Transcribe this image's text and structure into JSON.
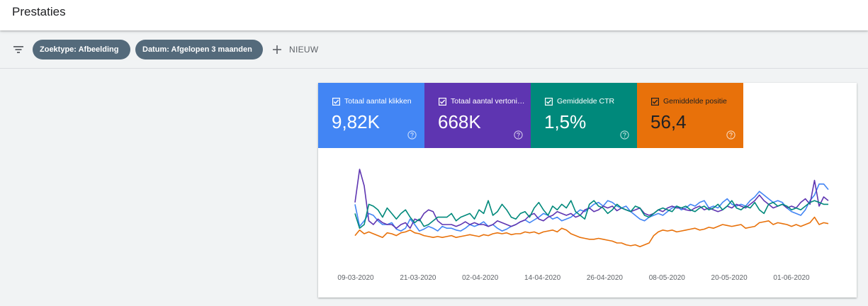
{
  "header": {
    "title": "Prestaties"
  },
  "filters": {
    "chips": [
      {
        "label": "Zoektype: Afbeelding"
      },
      {
        "label": "Datum: Afgelopen 3 maanden"
      }
    ],
    "new_label": "NIEUW"
  },
  "metrics": [
    {
      "label": "Totaal aantal klikken",
      "value": "9,82K",
      "color": "#4285f4"
    },
    {
      "label": "Totaal aantal vertoningen",
      "value": "668K",
      "color": "#5e35b1"
    },
    {
      "label": "Gemiddelde CTR",
      "value": "1,5%",
      "color": "#00897b"
    },
    {
      "label": "Gemiddelde positie",
      "value": "56,4",
      "color": "#e8710a"
    }
  ],
  "chart_data": {
    "type": "line",
    "x_tick_labels": [
      "09-03-2020",
      "21-03-2020",
      "02-04-2020",
      "14-04-2020",
      "26-04-2020",
      "08-05-2020",
      "20-05-2020",
      "01-06-2020"
    ],
    "grid": false,
    "legend": "none",
    "series": [
      {
        "name": "Totaal aantal klikken",
        "color": "#4285f4",
        "values": [
          62,
          38,
          44,
          52,
          50,
          44,
          40,
          40,
          42,
          35,
          33,
          36,
          46,
          40,
          33,
          35,
          38,
          36,
          33,
          38,
          36,
          36,
          34,
          33,
          36,
          40,
          38,
          40,
          43,
          38,
          40,
          36,
          33,
          35,
          38,
          40,
          43,
          45,
          42,
          45,
          48,
          52,
          50,
          46,
          48,
          44,
          46,
          48,
          52,
          56,
          54,
          58,
          62,
          64,
          60,
          66,
          64,
          60,
          58,
          60,
          54,
          50,
          46,
          44,
          48,
          50,
          52,
          50,
          54,
          58,
          60,
          56,
          58,
          62,
          60,
          64,
          66,
          58,
          60,
          58,
          64,
          68,
          62,
          60,
          62,
          60,
          66,
          70,
          76,
          72,
          68,
          64,
          66,
          64,
          58,
          54,
          52,
          50,
          56,
          66,
          72,
          84,
          84,
          78
        ]
      },
      {
        "name": "Totaal aantal vertoningen",
        "color": "#5e35b1",
        "values": [
          64,
          100,
          82,
          44,
          40,
          46,
          42,
          40,
          40,
          36,
          40,
          42,
          36,
          46,
          44,
          52,
          56,
          54,
          44,
          40,
          40,
          40,
          38,
          40,
          43,
          40,
          42,
          40,
          40,
          38,
          40,
          44,
          42,
          40,
          38,
          40,
          43,
          45,
          50,
          52,
          46,
          44,
          48,
          50,
          54,
          52,
          50,
          52,
          48,
          50,
          56,
          58,
          54,
          56,
          60,
          58,
          60,
          55,
          58,
          56,
          54,
          56,
          58,
          52,
          50,
          52,
          56,
          54,
          58,
          60,
          58,
          58,
          56,
          55,
          58,
          60,
          56,
          58,
          56,
          54,
          56,
          60,
          58,
          62,
          60,
          58,
          62,
          66,
          72,
          66,
          62,
          58,
          60,
          62,
          58,
          60,
          58,
          64,
          68,
          62,
          88,
          60,
          70,
          66
        ]
      },
      {
        "name": "Gemiddelde CTR",
        "color": "#00897b",
        "values": [
          52,
          36,
          40,
          62,
          60,
          56,
          48,
          58,
          52,
          46,
          52,
          56,
          48,
          42,
          46,
          38,
          40,
          44,
          48,
          48,
          48,
          52,
          44,
          48,
          50,
          52,
          46,
          56,
          52,
          66,
          50,
          54,
          62,
          56,
          48,
          46,
          52,
          54,
          48,
          58,
          64,
          56,
          50,
          60,
          56,
          62,
          58,
          66,
          54,
          50,
          46,
          62,
          66,
          60,
          58,
          52,
          56,
          62,
          58,
          56,
          54,
          60,
          58,
          50,
          48,
          52,
          56,
          58,
          56,
          54,
          60,
          58,
          60,
          56,
          54,
          58,
          60,
          56,
          58,
          62,
          56,
          60,
          66,
          58,
          56,
          60,
          58,
          64,
          56,
          52,
          62,
          64,
          60,
          62,
          60,
          56,
          58,
          56,
          60,
          64,
          66,
          64,
          62,
          62
        ]
      },
      {
        "name": "Gemiddelde positie",
        "color": "#e8710a",
        "values": [
          28,
          34,
          30,
          32,
          30,
          28,
          26,
          31,
          30,
          28,
          31,
          32,
          34,
          31,
          30,
          28,
          27,
          26,
          27,
          26,
          27,
          28,
          26,
          27,
          28,
          29,
          28,
          27,
          29,
          28,
          30,
          31,
          30,
          31,
          29,
          30,
          30,
          32,
          31,
          32,
          30,
          32,
          33,
          34,
          32,
          36,
          34,
          30,
          28,
          26,
          25,
          24,
          24,
          25,
          24,
          23,
          22,
          20,
          20,
          18,
          17,
          18,
          16,
          18,
          20,
          28,
          32,
          34,
          33,
          34,
          32,
          33,
          34,
          35,
          36,
          34,
          35,
          37,
          36,
          38,
          40,
          39,
          38,
          39,
          40,
          36,
          37,
          38,
          42,
          43,
          44,
          40,
          42,
          41,
          40,
          38,
          40,
          38,
          40,
          42,
          48,
          40,
          42,
          41
        ]
      }
    ]
  }
}
